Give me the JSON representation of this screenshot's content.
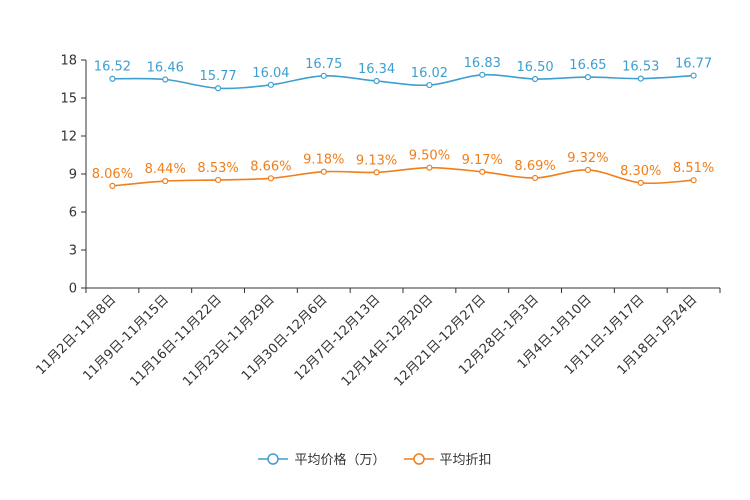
{
  "chart_data": {
    "type": "line",
    "categories": [
      "11月2日-11月8日",
      "11月9日-11月15日",
      "11月16日-11月22日",
      "11月23日-11月29日",
      "11月30日-12月6日",
      "12月7日-12月13日",
      "12月14日-12月20日",
      "12月21日-12月27日",
      "12月28日-1月3日",
      "1月4日-1月10日",
      "1月11日-1月17日",
      "1月18日-1月24日"
    ],
    "ylim": [
      0,
      18
    ],
    "yticks": [
      0,
      3,
      6,
      9,
      12,
      15,
      18
    ],
    "series": [
      {
        "name": "平均价格（万）",
        "color": "#3f9fd0",
        "values": [
          16.52,
          16.46,
          15.77,
          16.04,
          16.75,
          16.34,
          16.02,
          16.83,
          16.5,
          16.65,
          16.53,
          16.77
        ],
        "labels": [
          "16.52",
          "16.46",
          "15.77",
          "16.04",
          "16.75",
          "16.34",
          "16.02",
          "16.83",
          "16.50",
          "16.65",
          "16.53",
          "16.77"
        ]
      },
      {
        "name": "平均折扣",
        "color": "#f07e1b",
        "values": [
          8.06,
          8.44,
          8.53,
          8.66,
          9.18,
          9.13,
          9.5,
          9.17,
          8.69,
          9.32,
          8.3,
          8.51
        ],
        "labels": [
          "8.06%",
          "8.44%",
          "8.53%",
          "8.66%",
          "9.18%",
          "9.13%",
          "9.50%",
          "9.17%",
          "8.69%",
          "9.32%",
          "8.30%",
          "8.51%"
        ]
      }
    ]
  }
}
